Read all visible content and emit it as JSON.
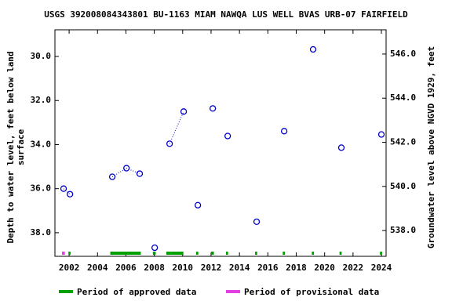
{
  "chart_data": {
    "type": "scatter",
    "title": "USGS 392008084343801 BU-1163 MIAM NAWQA LUS WELL BVAS URB-07 FAIRFIELD",
    "ylabel": [
      "Depth to water level, feet below land",
      "surface"
    ],
    "y2label": "Groundwater level above NGVD 1929, feet",
    "xlim": [
      2001.0,
      2024.33
    ],
    "xticks": [
      2002,
      2004,
      2006,
      2008,
      2010,
      2012,
      2014,
      2016,
      2018,
      2020,
      2022,
      2024
    ],
    "ylim": [
      39.07,
      28.79
    ],
    "yticks": [
      {
        "value": 30,
        "label": "30.0"
      },
      {
        "value": 32,
        "label": "32.0"
      },
      {
        "value": 34,
        "label": "34.0"
      },
      {
        "value": 36,
        "label": "36.0"
      },
      {
        "value": 38,
        "label": "38.0"
      }
    ],
    "y2lim": [
      536.83,
      547.1
    ],
    "y2ticks": [
      {
        "value": 538,
        "label": "538.0"
      },
      {
        "value": 540,
        "label": "540.0"
      },
      {
        "value": 542,
        "label": "542.0"
      },
      {
        "value": 544,
        "label": "544.0"
      },
      {
        "value": 546,
        "label": "546.0"
      }
    ],
    "series": [
      {
        "color": "#0000cc",
        "x": [
          2001.61,
          2002.06,
          null,
          2005.04,
          2006.04,
          2006.97,
          null,
          2008.03,
          null,
          2009.08,
          2010.07,
          null,
          2011.07,
          null,
          2012.12,
          null,
          2013.17,
          null,
          2015.21,
          null,
          2017.15,
          null,
          2019.19,
          null,
          2021.18,
          null,
          2024.0
        ],
        "values": [
          36.0,
          36.25,
          null,
          35.46,
          35.07,
          35.32,
          null,
          38.68,
          null,
          33.96,
          32.5,
          null,
          36.75,
          null,
          32.36,
          null,
          33.61,
          null,
          37.5,
          null,
          33.39,
          null,
          29.68,
          null,
          34.14,
          null,
          33.54
        ]
      }
    ],
    "periods": [
      {
        "name": "Period of approved data",
        "color": "#00a000",
        "ranges": [
          [
            1.95,
            2.1
          ],
          [
            4.9,
            7.05
          ],
          [
            7.9,
            8.1
          ],
          [
            8.85,
            10.05
          ],
          [
            10.95,
            11.1
          ],
          [
            12.0,
            12.2
          ],
          [
            13.05,
            13.2
          ],
          [
            15.1,
            15.25
          ],
          [
            17.05,
            17.2
          ],
          [
            19.1,
            19.25
          ],
          [
            21.05,
            21.2
          ],
          [
            23.9,
            24.05
          ]
        ],
        "base": 2000
      },
      {
        "name": "Period of provisional data",
        "color": "#e040e0",
        "ranges": [
          [
            1.5,
            1.7
          ]
        ],
        "base": 2000
      }
    ]
  }
}
